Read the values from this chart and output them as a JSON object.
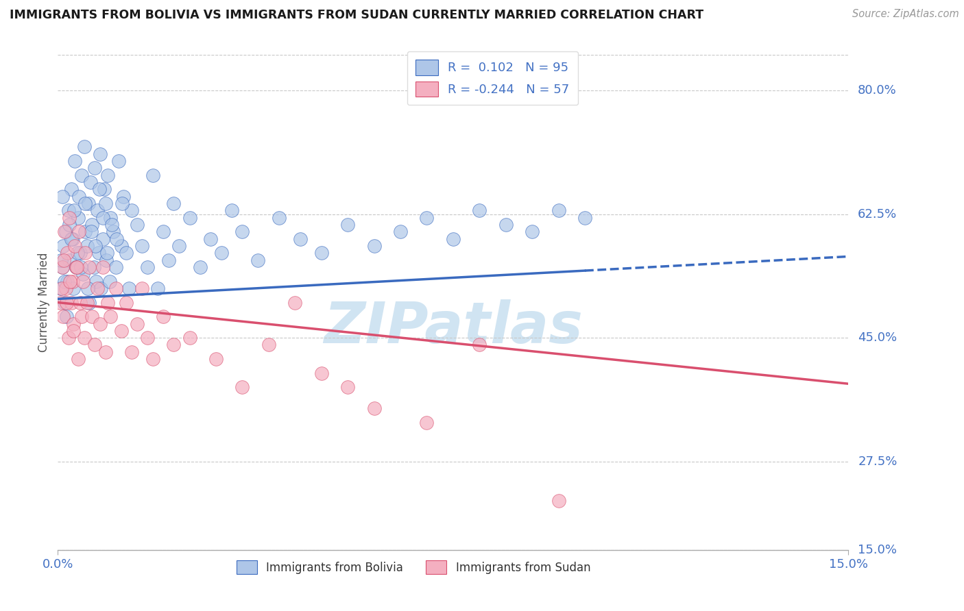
{
  "title": "IMMIGRANTS FROM BOLIVIA VS IMMIGRANTS FROM SUDAN CURRENTLY MARRIED CORRELATION CHART",
  "source": "Source: ZipAtlas.com",
  "ylabel": "Currently Married",
  "xlim": [
    0.0,
    15.0
  ],
  "ylim": [
    15.0,
    85.0
  ],
  "yticks": [
    80.0,
    62.5,
    45.0,
    27.5
  ],
  "ytick_bottom": 15.0,
  "bolivia_R": 0.102,
  "bolivia_N": 95,
  "sudan_R": -0.244,
  "sudan_N": 57,
  "bolivia_color": "#aec6e8",
  "sudan_color": "#f4afc0",
  "bolivia_line_color": "#3a6abf",
  "sudan_line_color": "#d94f6e",
  "grid_color": "#c8c8c8",
  "title_color": "#1a1a1a",
  "axis_label_color": "#4472c4",
  "watermark_text": "ZIPatlas",
  "watermark_color": "#d0e4f2",
  "bolivia_scatter_x": [
    0.05,
    0.08,
    0.1,
    0.12,
    0.15,
    0.18,
    0.2,
    0.22,
    0.25,
    0.28,
    0.3,
    0.32,
    0.35,
    0.38,
    0.4,
    0.42,
    0.45,
    0.48,
    0.5,
    0.52,
    0.55,
    0.58,
    0.6,
    0.62,
    0.65,
    0.68,
    0.7,
    0.72,
    0.75,
    0.78,
    0.8,
    0.82,
    0.85,
    0.88,
    0.9,
    0.92,
    0.95,
    0.98,
    1.0,
    1.05,
    1.1,
    1.15,
    1.2,
    1.25,
    1.3,
    1.35,
    1.4,
    1.5,
    1.6,
    1.7,
    1.8,
    1.9,
    2.0,
    2.1,
    2.2,
    2.3,
    2.5,
    2.7,
    2.9,
    3.1,
    3.3,
    3.5,
    3.8,
    4.2,
    4.6,
    5.0,
    5.5,
    6.0,
    6.5,
    7.0,
    7.5,
    8.0,
    8.5,
    9.0,
    9.5,
    10.0,
    0.06,
    0.09,
    0.13,
    0.17,
    0.21,
    0.26,
    0.31,
    0.37,
    0.44,
    0.51,
    0.57,
    0.63,
    0.71,
    0.79,
    0.86,
    0.93,
    1.02,
    1.12,
    1.22
  ],
  "bolivia_scatter_y": [
    52,
    55,
    58,
    50,
    60,
    53,
    63,
    56,
    66,
    59,
    52,
    70,
    55,
    62,
    65,
    57,
    68,
    54,
    72,
    60,
    58,
    64,
    50,
    67,
    61,
    55,
    69,
    53,
    63,
    57,
    71,
    52,
    59,
    66,
    64,
    56,
    68,
    53,
    62,
    60,
    55,
    70,
    58,
    65,
    57,
    52,
    63,
    61,
    58,
    55,
    68,
    52,
    60,
    56,
    64,
    58,
    62,
    55,
    59,
    57,
    63,
    60,
    56,
    62,
    59,
    57,
    61,
    58,
    60,
    62,
    59,
    63,
    61,
    60,
    63,
    62,
    56,
    65,
    53,
    48,
    61,
    59,
    63,
    57,
    55,
    64,
    52,
    60,
    58,
    66,
    62,
    57,
    61,
    59,
    64
  ],
  "sudan_scatter_x": [
    0.05,
    0.08,
    0.1,
    0.12,
    0.15,
    0.18,
    0.2,
    0.22,
    0.25,
    0.28,
    0.3,
    0.32,
    0.35,
    0.38,
    0.4,
    0.42,
    0.45,
    0.48,
    0.5,
    0.52,
    0.55,
    0.6,
    0.65,
    0.7,
    0.75,
    0.8,
    0.85,
    0.9,
    0.95,
    1.0,
    1.1,
    1.2,
    1.3,
    1.4,
    1.5,
    1.6,
    1.7,
    1.8,
    2.0,
    2.2,
    2.5,
    3.0,
    3.5,
    4.0,
    4.5,
    5.0,
    5.5,
    6.0,
    7.0,
    8.0,
    9.5,
    0.07,
    0.11,
    0.16,
    0.23,
    0.29,
    0.36
  ],
  "sudan_scatter_y": [
    50,
    55,
    48,
    60,
    52,
    57,
    45,
    62,
    50,
    53,
    47,
    58,
    55,
    42,
    60,
    50,
    48,
    53,
    45,
    57,
    50,
    55,
    48,
    44,
    52,
    47,
    55,
    43,
    50,
    48,
    52,
    46,
    50,
    43,
    47,
    52,
    45,
    42,
    48,
    44,
    45,
    42,
    38,
    44,
    50,
    40,
    38,
    35,
    33,
    44,
    22,
    52,
    56,
    50,
    53,
    46,
    55
  ],
  "bolivia_trend_x0": 0.0,
  "bolivia_trend_y0": 50.5,
  "bolivia_trend_x1": 15.0,
  "bolivia_trend_y1": 56.5,
  "bolivia_solid_x_end": 10.0,
  "sudan_trend_x0": 0.0,
  "sudan_trend_y0": 50.0,
  "sudan_trend_x1": 15.0,
  "sudan_trend_y1": 38.5
}
